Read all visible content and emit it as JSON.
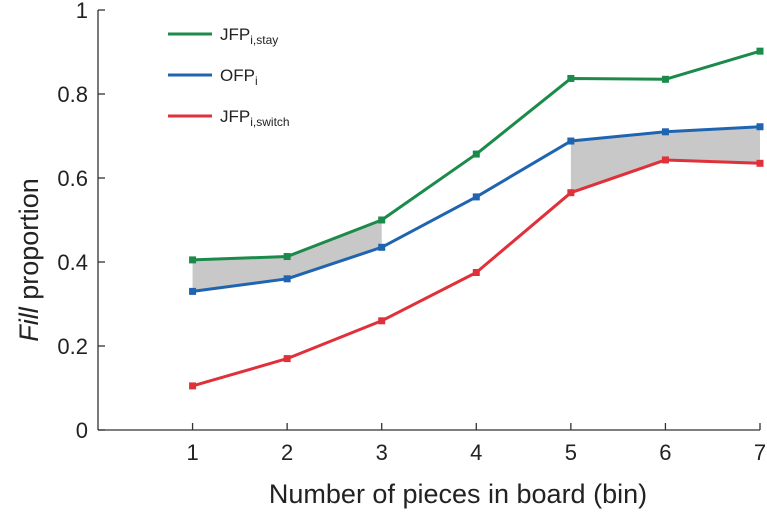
{
  "chart_data": {
    "type": "line",
    "title": "",
    "xlabel": "Number of pieces in board (bin)",
    "ylabel_italic": "Fill",
    "ylabel_rest": " proportion",
    "x": [
      1,
      2,
      3,
      4,
      5,
      6,
      7
    ],
    "x_ticks": [
      "1",
      "2",
      "3",
      "4",
      "5",
      "6",
      "7"
    ],
    "y_ticks": [
      "0",
      "0.2",
      "0.4",
      "0.6",
      "0.8",
      "1"
    ],
    "xlim": [
      0,
      7
    ],
    "ylim": [
      0,
      1
    ],
    "grid": false,
    "legend_position": "top-left",
    "series": [
      {
        "name": "JFP",
        "name_sub": "i,stay",
        "color": "#1b8a4a",
        "values": [
          0.405,
          0.413,
          0.5,
          0.657,
          0.837,
          0.835,
          0.902
        ]
      },
      {
        "name": "OFP",
        "name_sub": "i",
        "color": "#1f64b0",
        "values": [
          0.33,
          0.36,
          0.435,
          0.555,
          0.688,
          0.71,
          0.722
        ]
      },
      {
        "name": "JFP",
        "name_sub": "i,switch",
        "color": "#e0303a",
        "values": [
          0.105,
          0.17,
          0.26,
          0.375,
          0.565,
          0.643,
          0.635
        ]
      }
    ],
    "shaded_regions": [
      {
        "between": [
          "JFP_i,stay",
          "OFP_i"
        ],
        "x_from": 1,
        "x_to": 3,
        "color": "#c8c8c8"
      },
      {
        "between": [
          "OFP_i",
          "JFP_i,switch"
        ],
        "x_from": 5,
        "x_to": 7,
        "color": "#c8c8c8"
      }
    ]
  }
}
